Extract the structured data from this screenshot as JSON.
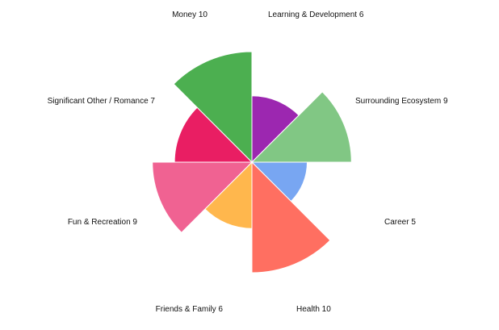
{
  "chart_data": {
    "type": "polar-area",
    "max_value": 10,
    "start_angle_deg": 0,
    "direction": "clockwise",
    "segments": [
      {
        "label": "Learning & Development",
        "value": 6,
        "color": "#9c27b0"
      },
      {
        "label": "Surrounding Ecosystem",
        "value": 9,
        "color": "#81c784"
      },
      {
        "label": "Career",
        "value": 5,
        "color": "#78a6f2"
      },
      {
        "label": "Health",
        "value": 10,
        "color": "#ff6f61"
      },
      {
        "label": "Friends & Family",
        "value": 6,
        "color": "#ffb74d"
      },
      {
        "label": "Fun & Recreation",
        "value": 9,
        "color": "#f06292"
      },
      {
        "label": "Significant Other / Romance",
        "value": 7,
        "color": "#e91e63"
      },
      {
        "label": "Money",
        "value": 10,
        "color": "#4caf50"
      }
    ]
  }
}
